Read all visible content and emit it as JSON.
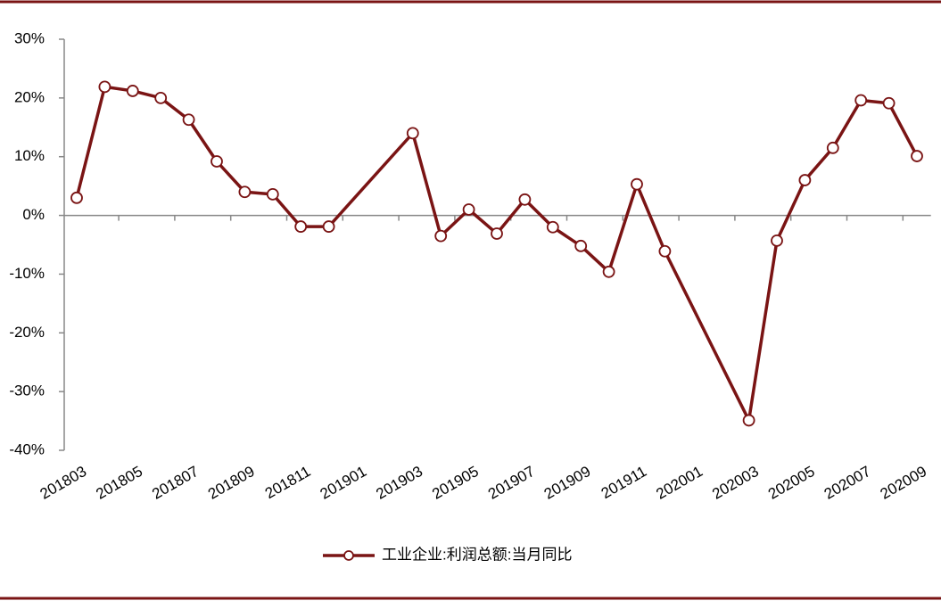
{
  "chart_data": {
    "type": "line",
    "categories": [
      "201803",
      null,
      "201805",
      null,
      "201807",
      null,
      "201809",
      null,
      "201811",
      null,
      "201901",
      null,
      "201903",
      null,
      "201905",
      null,
      "201907",
      null,
      "201909",
      null,
      "201911",
      null,
      "202001",
      null,
      "202003",
      null,
      "202005",
      null,
      "202007",
      null,
      "202009"
    ],
    "series": [
      {
        "name": "工业企业:利润总额:当月同比",
        "color": "#7a1414",
        "values": [
          3.0,
          21.9,
          21.2,
          20.0,
          16.3,
          9.2,
          4.0,
          3.6,
          -1.9,
          -1.9,
          null,
          null,
          14.0,
          -3.5,
          1.0,
          -3.1,
          2.7,
          -2.0,
          -5.2,
          -9.6,
          5.3,
          -6.1,
          null,
          null,
          -34.9,
          -4.3,
          6.0,
          11.5,
          19.6,
          19.1,
          10.1
        ]
      }
    ],
    "ylim": [
      -40,
      30
    ],
    "yticks": [
      {
        "value": -40,
        "label": "-40%"
      },
      {
        "value": -30,
        "label": "-30%"
      },
      {
        "value": -20,
        "label": "-20%"
      },
      {
        "value": -10,
        "label": "-10%"
      },
      {
        "value": 0,
        "label": "0%"
      },
      {
        "value": 10,
        "label": "10%"
      },
      {
        "value": 20,
        "label": "20%"
      },
      {
        "value": 30,
        "label": "30%"
      }
    ],
    "connect_gaps": true,
    "legend": "bottom"
  }
}
